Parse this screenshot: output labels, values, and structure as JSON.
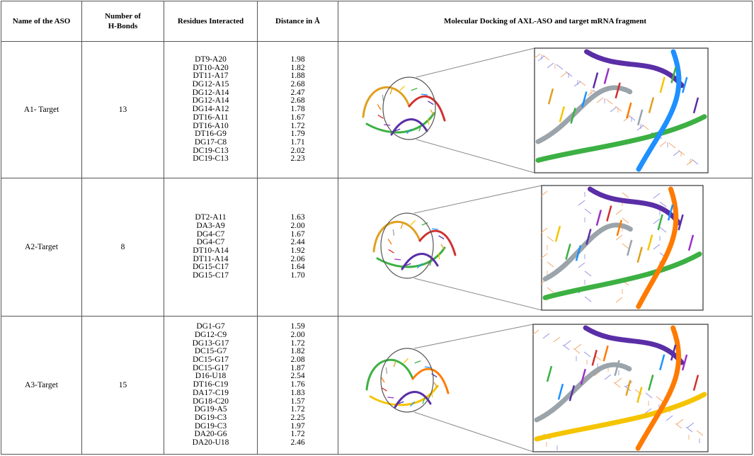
{
  "headers": {
    "aso": "Name of the ASO",
    "hbonds_line1": "Number of",
    "hbonds_line2": "H-Bonds",
    "residues": "Residues Interacted",
    "distance": "Distance in Å",
    "docking": "Molecular Docking of AXL-ASO and target mRNA fragment"
  },
  "rows": [
    {
      "name": "A1- Target",
      "hbonds": "13",
      "residues": [
        "DT9-A20",
        "DT10-A20",
        "DT11-A17",
        "DG12-A15",
        "DG12-A14",
        "DG12-A14",
        "DG14-A12",
        "DT16-A11",
        "DT16-A10",
        "DT16-G9",
        "DG17-C8",
        "DC19-C13",
        "DC19-C13"
      ],
      "distances": [
        "1.98",
        "1.82",
        "1.88",
        "2.68",
        "2.47",
        "2.68",
        "1.78",
        "1.67",
        "1.72",
        "1.79",
        "1.71",
        "2.02",
        "2.23"
      ]
    },
    {
      "name": "A2-Target",
      "hbonds": "8",
      "residues": [
        "DT2-A11",
        "DA3-A9",
        "DG4-C7",
        "DG4-C7",
        "DT10-A14",
        "DT11-A14",
        "DG15-C17",
        "DG15-C17"
      ],
      "distances": [
        "1.63",
        "2.00",
        "1.67",
        "2.44",
        "1.92",
        "2.06",
        "1.64",
        "1.70"
      ]
    },
    {
      "name": "A3-Target",
      "hbonds": "15",
      "residues": [
        "DG1-G7",
        "DG12-C9",
        "DG13-G17",
        "DC15-G7",
        "DC15-G17",
        "DC15-G17",
        "D16-U18",
        "DT16-C19",
        "DA17-C19",
        "DG18-C20",
        "DG19-A5",
        "DG19-C3",
        "DG19-C3",
        "DA20-G6",
        "DA20-U18"
      ],
      "distances": [
        "1.59",
        "2.00",
        "1.72",
        "1.82",
        "2.08",
        "1.87",
        "2.54",
        "1.76",
        "1.83",
        "1.57",
        "1.72",
        "2.25",
        "1.97",
        "1.72",
        "2.46"
      ]
    }
  ],
  "ribbon_colors": [
    "#e0a020",
    "#f5c400",
    "#3cb043",
    "#1e90ff",
    "#5a2ea6",
    "#9b30c8",
    "#d03030",
    "#ff7a00",
    "#9aa4aa"
  ]
}
